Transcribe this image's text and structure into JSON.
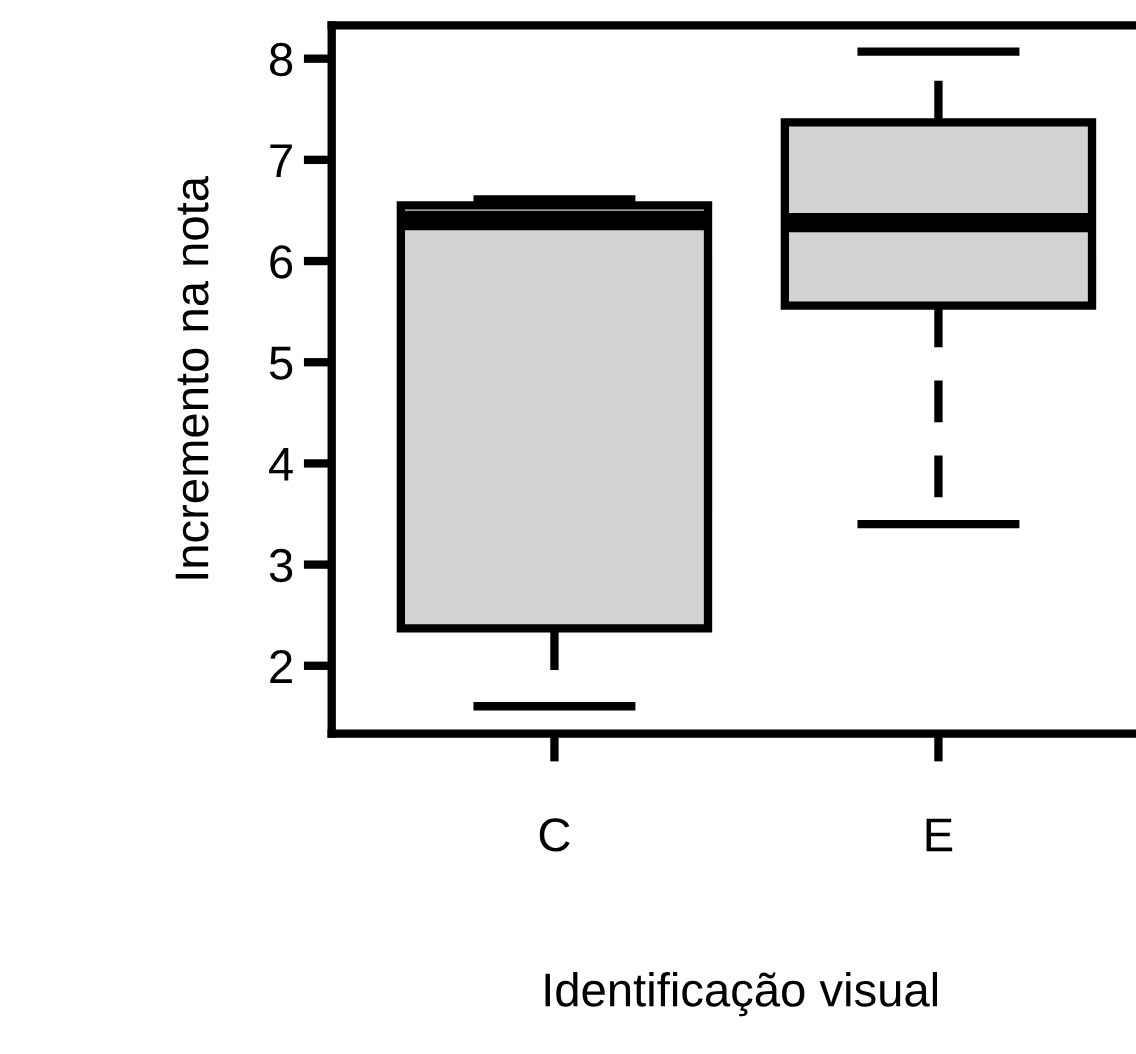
{
  "chart_data": {
    "type": "box",
    "xlabel": "Identificação visual",
    "ylabel": "Incremento na nota",
    "categories": [
      "C",
      "E"
    ],
    "boxes": [
      {
        "low": 1.6,
        "q1": 2.37,
        "median": 6.4,
        "q3": 6.55,
        "high": 6.61
      },
      {
        "low": 3.4,
        "q1": 5.56,
        "median": 6.38,
        "q3": 7.37,
        "high": 8.07
      }
    ],
    "color": "#d3d3d3",
    "ylim": [
      1.33,
      8.33
    ],
    "yticks": [
      2,
      3,
      4,
      5,
      6,
      7,
      8
    ],
    "grid": false,
    "line_style": "dashed"
  }
}
